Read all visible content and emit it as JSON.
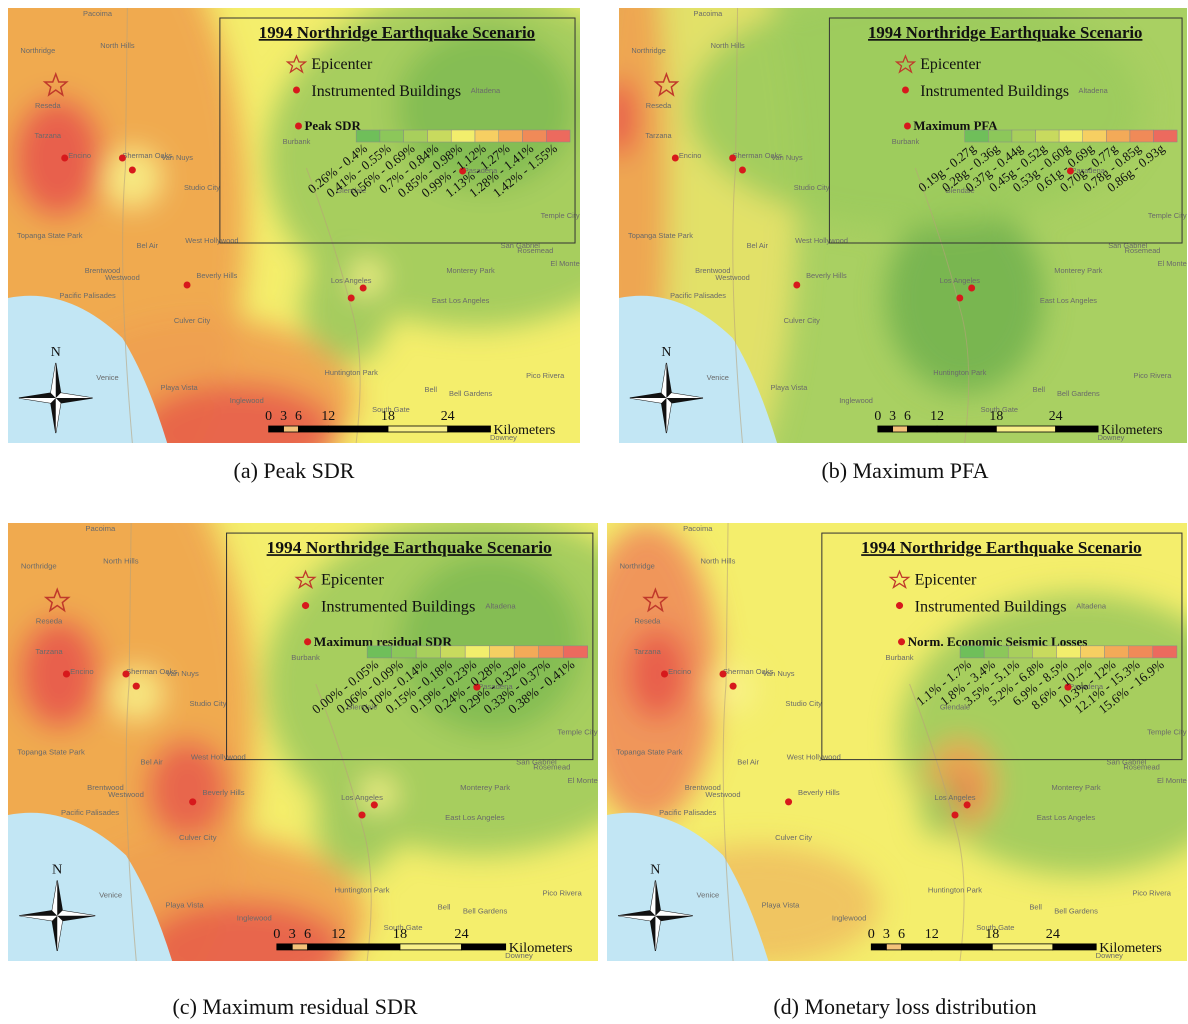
{
  "common": {
    "title": "1994 Northridge Earthquake Scenario",
    "epicenter": "Epicenter",
    "buildings": "Instrumented Buildings",
    "north": "N",
    "scale_ticks": [
      "0",
      "3",
      "6",
      "12",
      "18",
      "24"
    ],
    "scale_unit": "Kilometers",
    "place_names": [
      "Pacoima",
      "North Hills",
      "Northridge",
      "Reseda",
      "Tarzana",
      "Encino",
      "Van Nuys",
      "Sherman Oaks",
      "Studio City",
      "Burbank",
      "Glendale",
      "Pasadena",
      "Altadena",
      "Bel Air",
      "Brentwood",
      "Westwood",
      "Beverly Hills",
      "West Hollywood",
      "Culver City",
      "Pacific Palisades",
      "Venice",
      "Playa Vista",
      "Inglewood",
      "Los Angeles",
      "East Los Angeles",
      "Monterey Park",
      "Rosemead",
      "El Monte",
      "Temple City",
      "San Gabriel",
      "Huntington Park",
      "Bell",
      "Bell Gardens",
      "Downey",
      "Pico Rivera",
      "South Gate",
      "Topanga State Park"
    ]
  },
  "panels": [
    {
      "caption": "(a) Peak SDR",
      "measure": "Peak SDR",
      "classes": [
        "0.26% - 0.4%",
        "0.41% - 0.55%",
        "0.56% - 0.69%",
        "0.7% - 0.84%",
        "0.85% - 0.98%",
        "0.99% - 1.12%",
        "1.13% - 1.27%",
        "1.28% - 1.41%",
        "1.42% - 1.55%"
      ]
    },
    {
      "caption": "(b) Maximum PFA",
      "measure": "Maximum PFA",
      "classes": [
        "0.19g - 0.27g",
        "0.28g - 0.36g",
        "0.37g - 0.44g",
        "0.45g - 0.52g",
        "0.53g - 0.60g",
        "0.61g - 0.69g",
        "0.70g - 0.77g",
        "0.78g - 0.85g",
        "0.86g - 0.93g"
      ]
    },
    {
      "caption": "(c) Maximum residual SDR",
      "measure": "Maximum residual SDR",
      "classes": [
        "0.00% - 0.05%",
        "0.06% - 0.09%",
        "0.10% - 0.14%",
        "0.15% - 0.18%",
        "0.19% - 0.23%",
        "0.24% - 0.28%",
        "0.29% - 0.32%",
        "0.33% - 0.37%",
        "0.38% - 0.41%"
      ]
    },
    {
      "caption": "(d) Monetary loss distribution",
      "measure": "Norm. Economic Seismic Losses",
      "classes": [
        "1.1% - 1.7%",
        "1.8% - 3.4%",
        "3.5% - 5.1%",
        "5.2% - 6.8%",
        "6.9% - 8.5%",
        "8.6% - 10.2%",
        "10.3% - 12%",
        "12.1% - 15.3%",
        "15.6% - 16.9%"
      ]
    }
  ]
}
